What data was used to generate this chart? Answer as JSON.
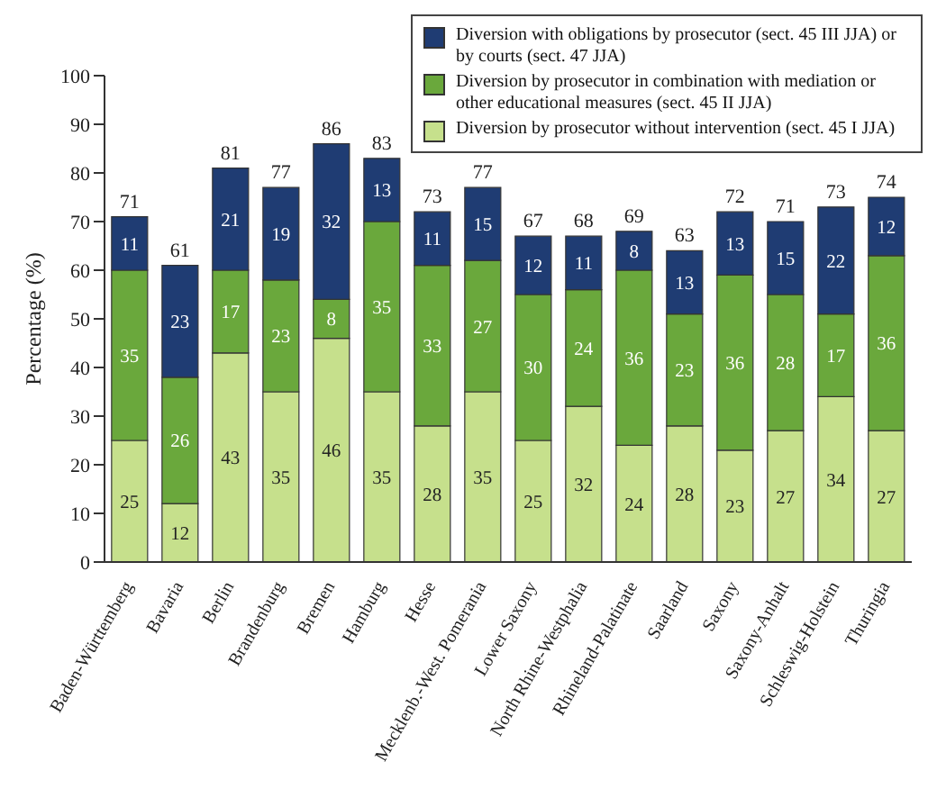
{
  "chart_data": {
    "type": "bar",
    "stacked": true,
    "ylabel": "Percentage (%)",
    "categories": [
      "Baden-Württemberg",
      "Bavaria",
      "Berlin",
      "Brandenburg",
      "Bremen",
      "Hamburg",
      "Hesse",
      "Mecklenb.-West. Pomerania",
      "Lower Saxony",
      "North Rhine-Westphalia",
      "Rhineland-Palatinate",
      "Saarland",
      "Saxony",
      "Saxony-Anhalt",
      "Schleswig-Holstein",
      "Thuringia"
    ],
    "series": [
      {
        "name": "Diversion by prosecutor without intervention (sect. 45 I JJA)",
        "color": "#c6e08c",
        "values": [
          25,
          12,
          43,
          35,
          46,
          35,
          28,
          35,
          25,
          32,
          24,
          28,
          23,
          27,
          34,
          27
        ]
      },
      {
        "name": "Diversion by prosecutor in combination with mediation or other educational measures (sect. 45 II JJA)",
        "color": "#6aa83c",
        "values": [
          35,
          26,
          17,
          23,
          8,
          35,
          33,
          27,
          30,
          24,
          36,
          23,
          36,
          28,
          17,
          36
        ]
      },
      {
        "name": "Diversion with obligations by prosecutor (sect. 45 III JJA) or by courts (sect. 47 JJA)",
        "color": "#1f3c73",
        "values": [
          11,
          23,
          21,
          19,
          32,
          13,
          11,
          15,
          12,
          11,
          8,
          13,
          13,
          15,
          22,
          12
        ]
      }
    ],
    "totals": [
      "71",
      "61",
      "81",
      "77",
      "86",
      "83",
      "73",
      "77",
      "67",
      "68",
      "69",
      "63",
      "72",
      "71",
      "73",
      "74"
    ],
    "data_labels": true,
    "ylim": [
      0,
      100
    ],
    "yticks": [
      0,
      10,
      20,
      30,
      40,
      50,
      60,
      70,
      80,
      90,
      100
    ],
    "grid": false,
    "legend": "top right"
  }
}
